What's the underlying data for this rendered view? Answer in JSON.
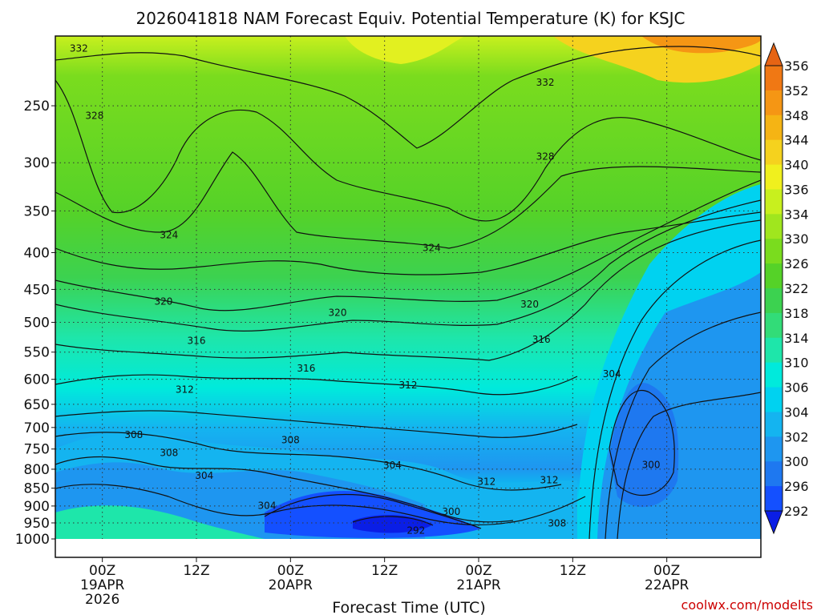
{
  "chart_data": {
    "type": "heatmap",
    "title": "2026041818 NAM Forecast Equiv. Potential Temperature (K) for KSJC",
    "xlabel": "Forecast Time (UTC)",
    "ylabel": "",
    "y_scale": "log",
    "y_range": [
      1000,
      200
    ],
    "y_ticks": [
      250,
      300,
      350,
      400,
      450,
      500,
      550,
      600,
      650,
      700,
      750,
      800,
      850,
      900,
      950,
      1000
    ],
    "x_range_hours": [
      -6,
      84
    ],
    "x_ticks": [
      {
        "hour": 0,
        "lines": [
          "00Z",
          "19APR",
          "2026"
        ]
      },
      {
        "hour": 12,
        "lines": [
          "12Z"
        ]
      },
      {
        "hour": 24,
        "lines": [
          "00Z",
          "20APR"
        ]
      },
      {
        "hour": 36,
        "lines": [
          "12Z"
        ]
      },
      {
        "hour": 48,
        "lines": [
          "00Z",
          "21APR"
        ]
      },
      {
        "hour": 60,
        "lines": [
          "12Z"
        ]
      },
      {
        "hour": 72,
        "lines": [
          "00Z",
          "22APR"
        ]
      }
    ],
    "colorbar": {
      "levels": [
        292,
        296,
        300,
        302,
        304,
        306,
        310,
        314,
        318,
        322,
        326,
        330,
        334,
        336,
        340,
        344,
        348,
        352,
        356
      ],
      "colors": [
        "#0a1ee6",
        "#1450ff",
        "#1e78f0",
        "#1e96f0",
        "#14b4f0",
        "#00d2f0",
        "#00eadc",
        "#1ee6aa",
        "#32dc78",
        "#3cd250",
        "#55d228",
        "#7adc1e",
        "#a0e61e",
        "#c8f01e",
        "#f0f01e",
        "#f5d21e",
        "#f5b414",
        "#f59614",
        "#f07814",
        "#e66414"
      ]
    },
    "contour_labels": [
      {
        "value": "332",
        "hour": -3,
        "p": 208
      },
      {
        "value": "328",
        "hour": -1,
        "p": 258
      },
      {
        "value": "332",
        "hour": 56.5,
        "p": 232
      },
      {
        "value": "328",
        "hour": 56.5,
        "p": 294
      },
      {
        "value": "324",
        "hour": 8.5,
        "p": 378
      },
      {
        "value": "324",
        "hour": 42,
        "p": 394
      },
      {
        "value": "320",
        "hour": 7.8,
        "p": 468
      },
      {
        "value": "320",
        "hour": 30,
        "p": 485
      },
      {
        "value": "320",
        "hour": 54.5,
        "p": 472
      },
      {
        "value": "316",
        "hour": 12,
        "p": 530
      },
      {
        "value": "316",
        "hour": 56,
        "p": 528
      },
      {
        "value": "316",
        "hour": 26,
        "p": 579
      },
      {
        "value": "312",
        "hour": 10.5,
        "p": 620
      },
      {
        "value": "312",
        "hour": 39,
        "p": 611
      },
      {
        "value": "304",
        "hour": 65,
        "p": 590
      },
      {
        "value": "308",
        "hour": 4,
        "p": 717
      },
      {
        "value": "308",
        "hour": 24,
        "p": 729
      },
      {
        "value": "308",
        "hour": 8.5,
        "p": 759
      },
      {
        "value": "304",
        "hour": 13,
        "p": 817
      },
      {
        "value": "304",
        "hour": 37,
        "p": 790
      },
      {
        "value": "300",
        "hour": 70,
        "p": 789
      },
      {
        "value": "312",
        "hour": 49,
        "p": 833
      },
      {
        "value": "312",
        "hour": 57,
        "p": 828
      },
      {
        "value": "304",
        "hour": 21,
        "p": 899
      },
      {
        "value": "300",
        "hour": 44.5,
        "p": 917
      },
      {
        "value": "308",
        "hour": 58,
        "p": 951
      },
      {
        "value": "292",
        "hour": 40,
        "p": 973
      }
    ],
    "grid": true,
    "legend": "colorbar-right"
  },
  "credit": "coolwx.com/modelts"
}
